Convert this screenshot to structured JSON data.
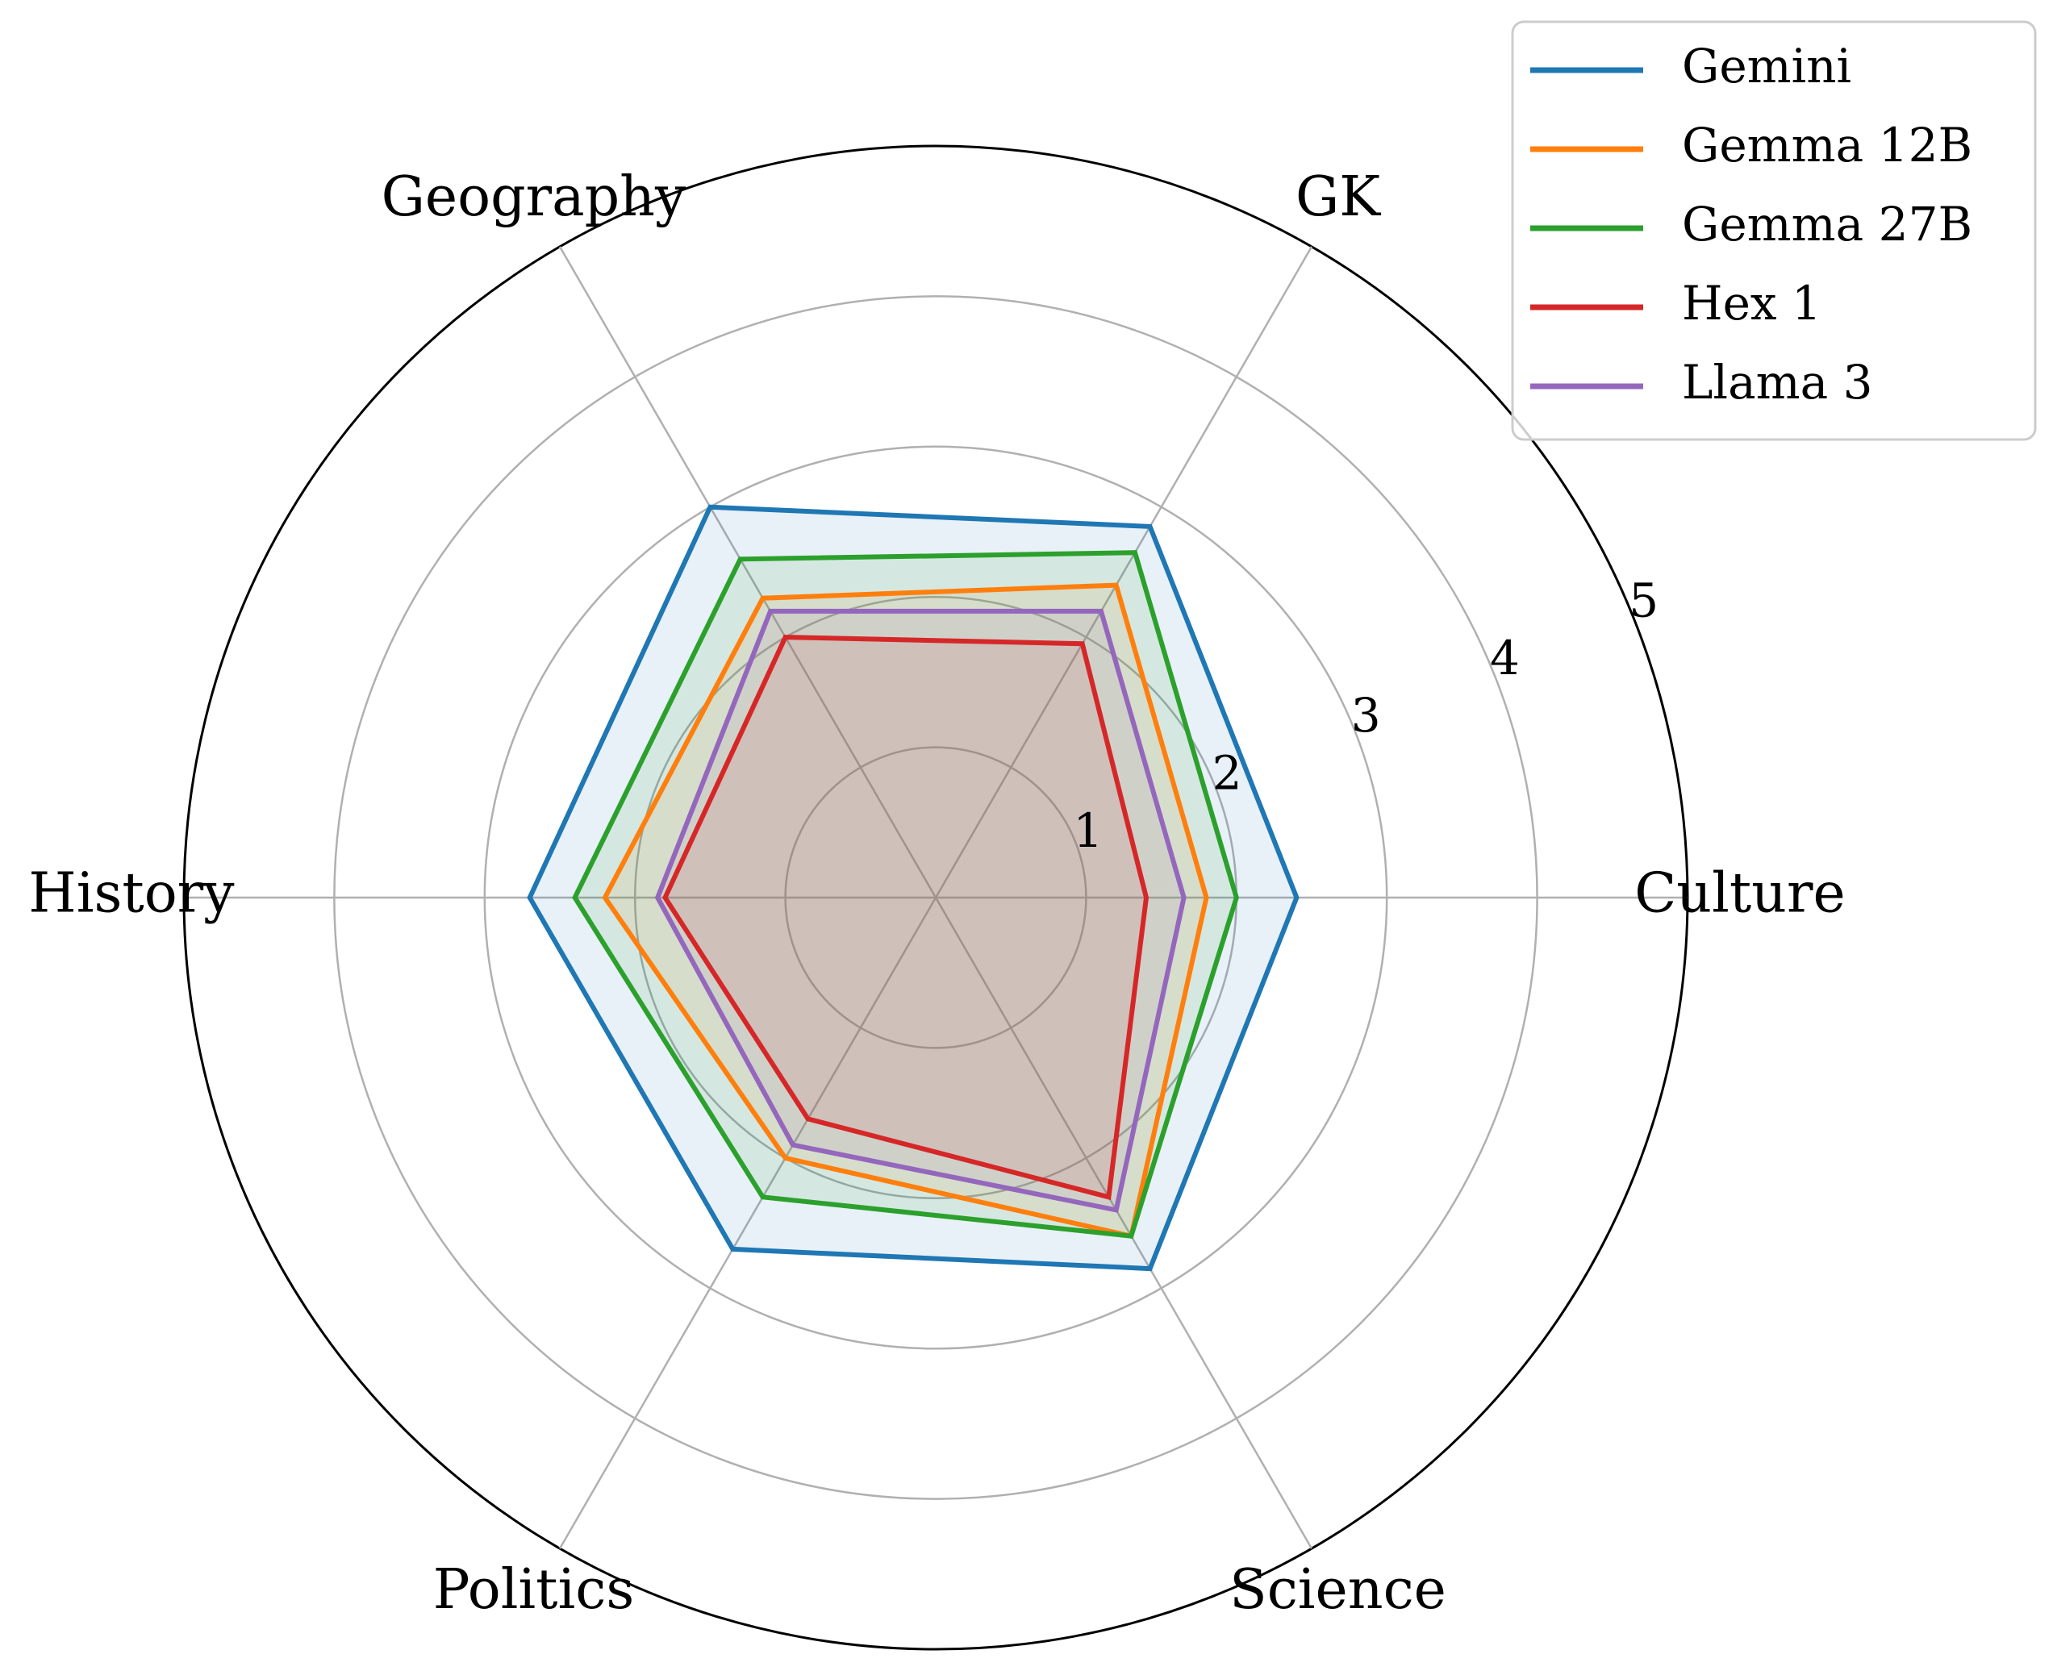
{
  "chart_data": {
    "type": "radar",
    "categories": [
      "Culture",
      "GK",
      "Geography",
      "History",
      "Politics",
      "Science"
    ],
    "rlim": [
      0,
      5
    ],
    "r_ticks": [
      1,
      2,
      3,
      4,
      5
    ],
    "grid": true,
    "legend_position": "top-right",
    "series": [
      {
        "name": "Gemini",
        "values": [
          2.4,
          2.85,
          3.0,
          2.7,
          2.7,
          2.85
        ],
        "color": "#1f77b4"
      },
      {
        "name": "Gemma 12B",
        "values": [
          1.8,
          2.4,
          2.3,
          2.2,
          2.0,
          2.6
        ],
        "color": "#ff7f0e"
      },
      {
        "name": "Gemma 27B",
        "values": [
          2.0,
          2.65,
          2.6,
          2.4,
          2.3,
          2.6
        ],
        "color": "#2ca02c"
      },
      {
        "name": "Hex 1",
        "values": [
          1.4,
          1.95,
          2.0,
          1.8,
          1.7,
          2.3
        ],
        "color": "#d62728"
      },
      {
        "name": "Llama 3",
        "values": [
          1.65,
          2.2,
          2.2,
          1.85,
          1.9,
          2.4
        ],
        "color": "#9467bd"
      }
    ]
  }
}
